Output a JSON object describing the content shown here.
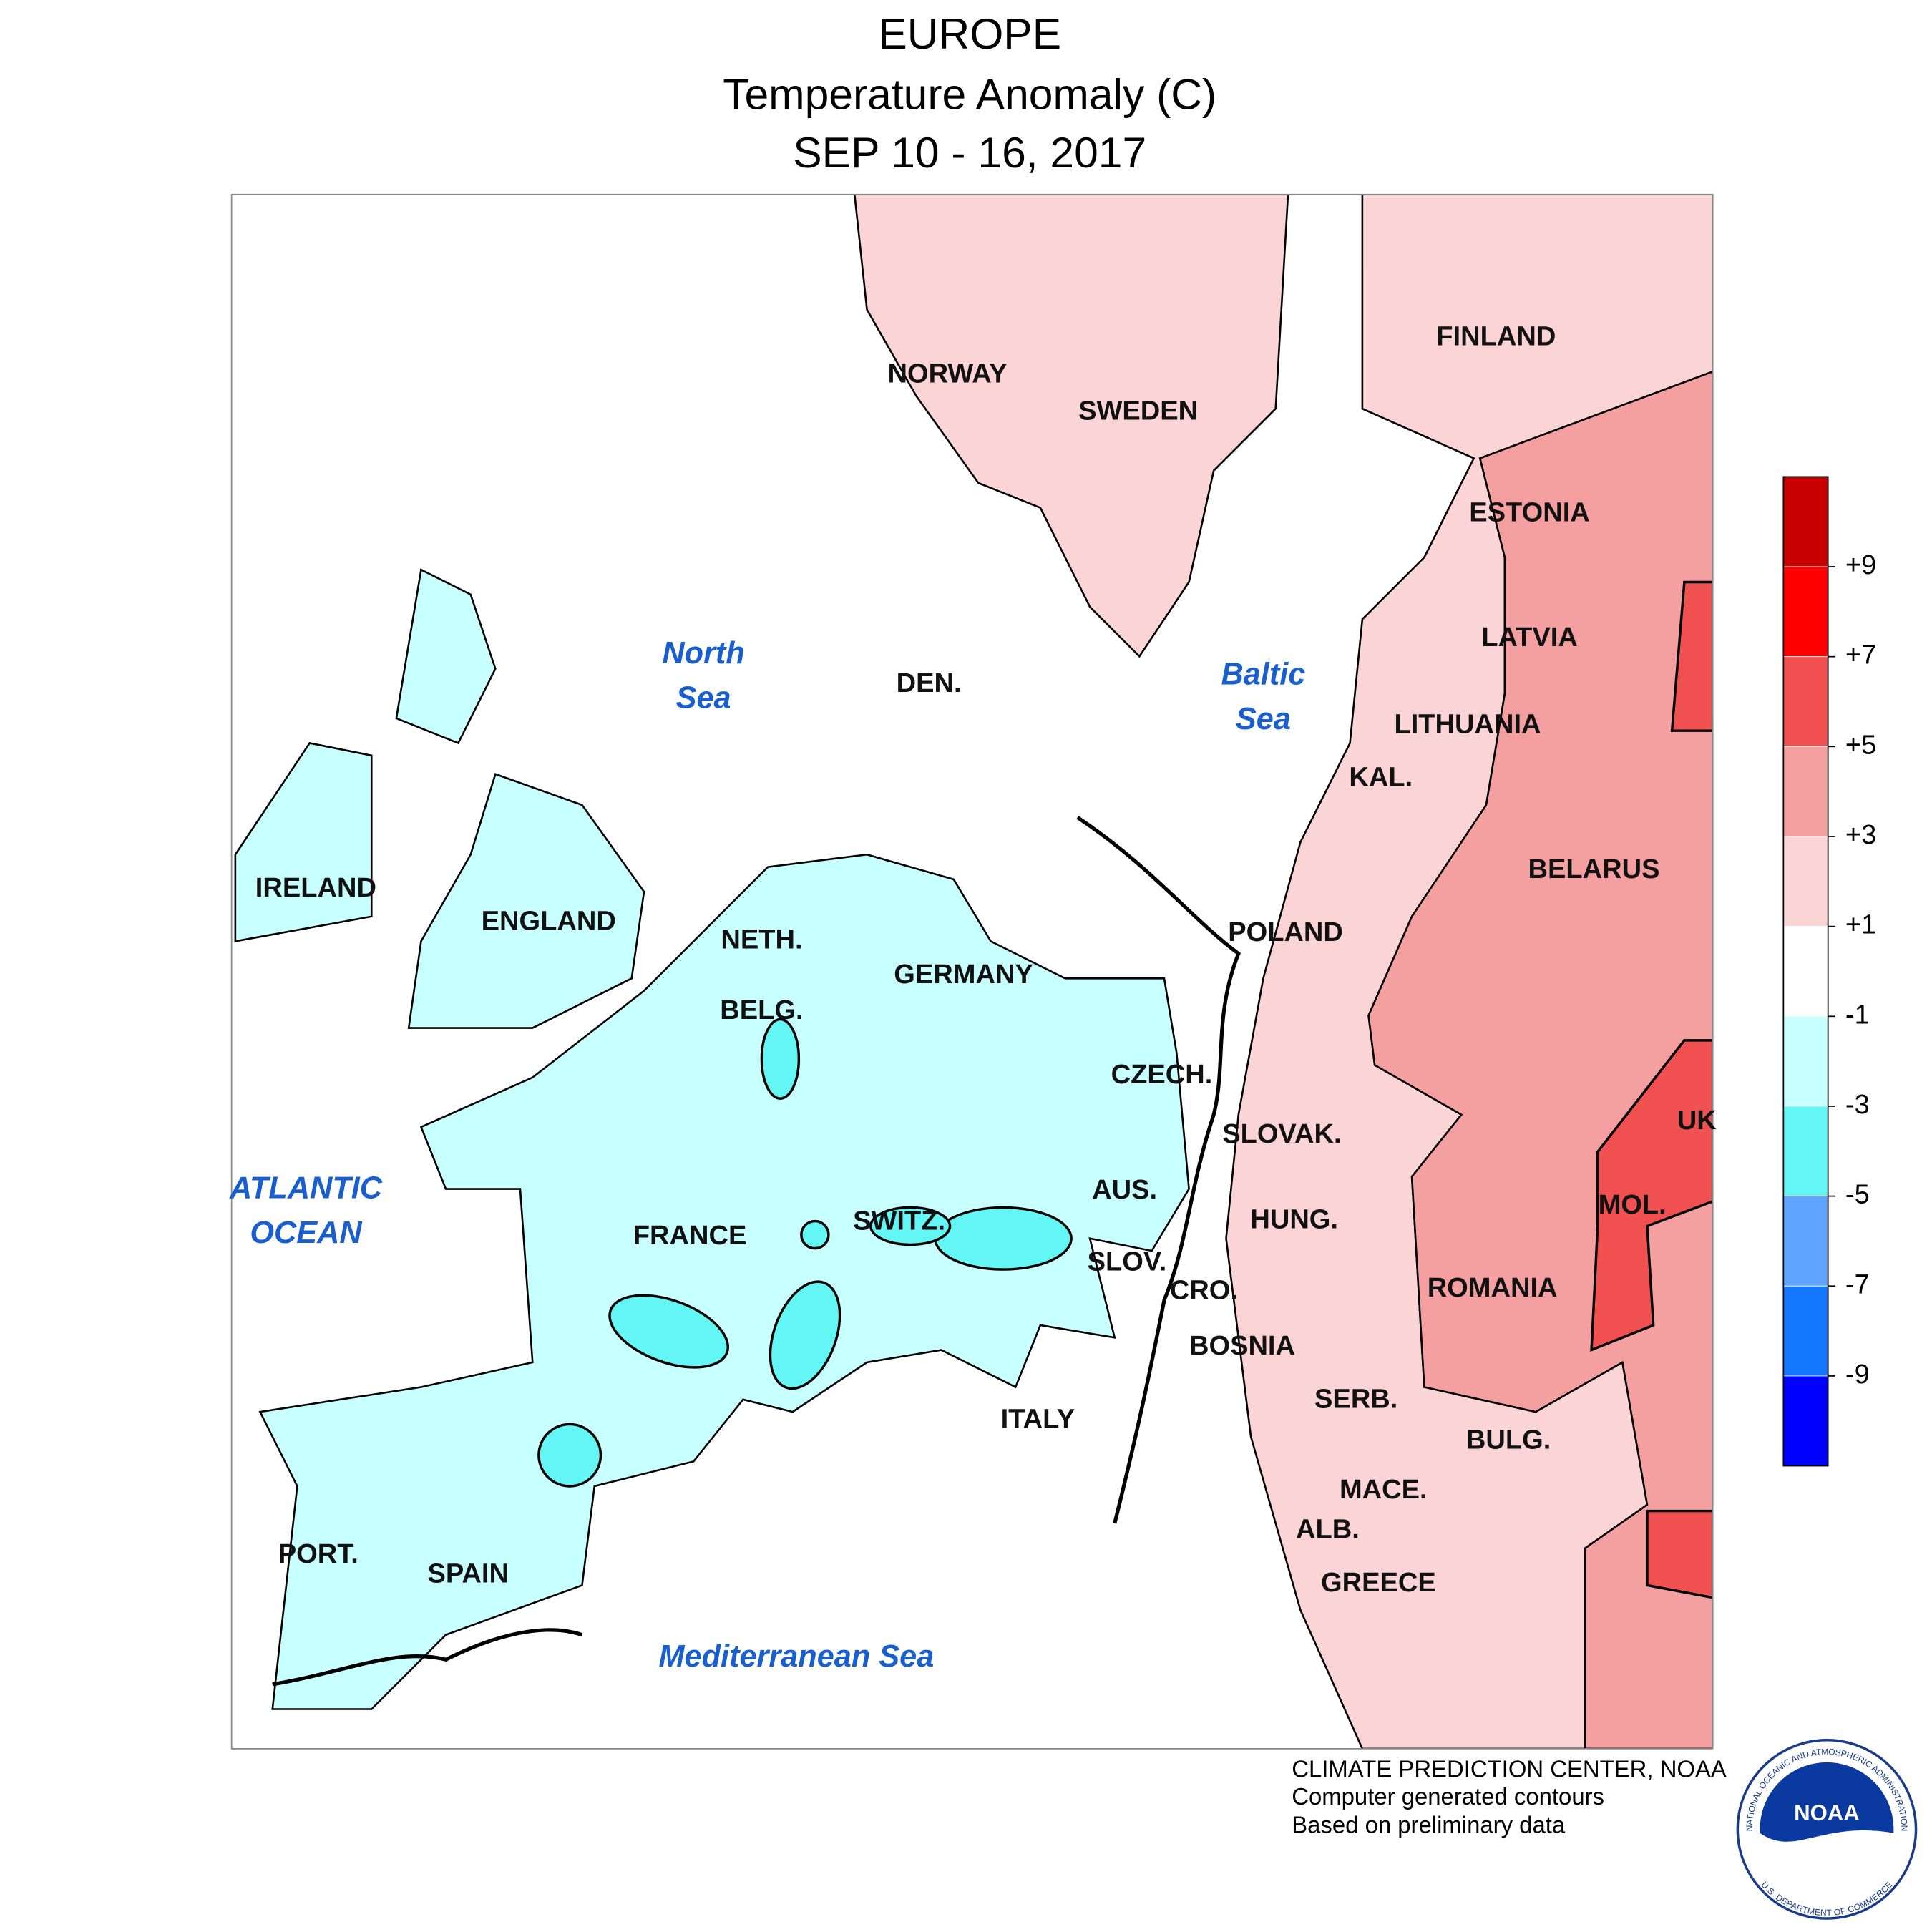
{
  "title": [
    "EUROPE",
    "Temperature Anomaly (C)",
    "SEP 10 - 16, 2017"
  ],
  "map": {
    "countries": [
      "FINLAND",
      "NORWAY",
      "SWEDEN",
      "ESTONIA",
      "LATVIA",
      "LITHUANIA",
      "KAL.",
      "BELARUS",
      "POLAND",
      "IRELAND",
      "ENGLAND",
      "NETH.",
      "BELG.",
      "GERMANY",
      "DEN.",
      "CZECH.",
      "SLOVAK.",
      "UK",
      "AUS.",
      "HUNG.",
      "MOL.",
      "SWITZ.",
      "FRANCE",
      "SLOV.",
      "CRO.",
      "ROMANIA",
      "BOSNIA",
      "SERB.",
      "ITALY",
      "BULG.",
      "MACE.",
      "ALB.",
      "GREECE",
      "PORT.",
      "SPAIN"
    ],
    "seas": [
      "North",
      "Sea",
      "Baltic",
      "Sea",
      "ATLANTIC",
      "OCEAN",
      "Mediterranean Sea"
    ]
  },
  "legend": {
    "colors": [
      "#c80000",
      "#ff0000",
      "#f05050",
      "#f5a0a0",
      "#fbd5d5",
      "#ffffff",
      "#c8ffff",
      "#64f5f5",
      "#5fa5ff",
      "#1478ff",
      "#0000ff"
    ],
    "ticks": [
      {
        "value": 9,
        "label": "+9"
      },
      {
        "value": 7,
        "label": "+7"
      },
      {
        "value": 5,
        "label": "+5"
      },
      {
        "value": 3,
        "label": "+3"
      },
      {
        "value": 1,
        "label": "+1"
      },
      -1,
      -3,
      -5,
      -7,
      -9
    ]
  },
  "credits": [
    "CLIMATE PREDICTION CENTER, NOAA",
    "Computer generated contours",
    "Based on preliminary data"
  ],
  "logo": {
    "text": "NOAA",
    "ring_top": "NATIONAL OCEANIC AND ATMOSPHERIC ADMINISTRATION",
    "ring_bottom": "U.S. DEPARTMENT OF COMMERCE"
  }
}
